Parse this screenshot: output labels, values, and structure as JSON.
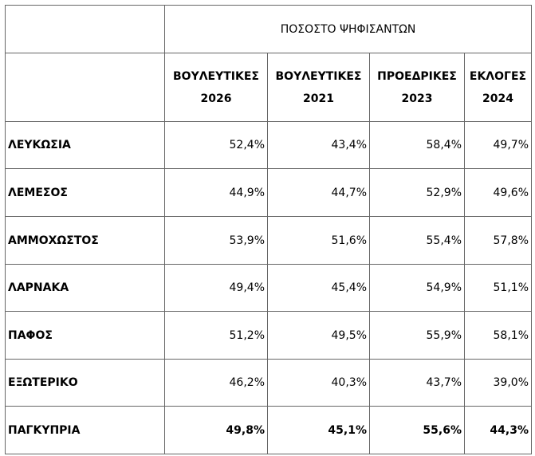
{
  "table": {
    "title": "ΠΟΣΟΣΤΟ ΨΗΦΙΣΑΝΤΩΝ",
    "columns": [
      {
        "name": "ΒΟΥΛΕΥΤΙΚΕΣ",
        "year": "2026"
      },
      {
        "name": "ΒΟΥΛΕΥΤΙΚΕΣ",
        "year": "2021"
      },
      {
        "name": "ΠΡΟΕΔΡΙΚΕΣ",
        "year": "2023"
      },
      {
        "name": "ΕΚΛΟΓΕΣ",
        "year": "2024"
      }
    ],
    "rows": [
      [
        "ΛΕΥΚΩΣΙΑ",
        "52,4%",
        "43,4%",
        "58,4%",
        "49,7%"
      ],
      [
        "ΛΕΜΕΣΟΣ",
        "44,9%",
        "44,7%",
        "52,9%",
        "49,6%"
      ],
      [
        "ΑΜΜΟΧΩΣΤΟΣ",
        "53,9%",
        "51,6%",
        "55,4%",
        "57,8%"
      ],
      [
        "ΛΑΡΝΑΚΑ",
        "49,4%",
        "45,4%",
        "54,9%",
        "51,1%"
      ],
      [
        "ΠΑΦΟΣ",
        "51,2%",
        "49,5%",
        "55,9%",
        "58,1%"
      ],
      [
        "ΕΞΩΤΕΡΙΚΟ",
        "46,2%",
        "40,3%",
        "43,7%",
        "39,0%"
      ]
    ],
    "total": [
      "ΠΑΓΚΥΠΡΙΑ",
      "49,8%",
      "45,1%",
      "55,6%",
      "44,3%"
    ]
  }
}
